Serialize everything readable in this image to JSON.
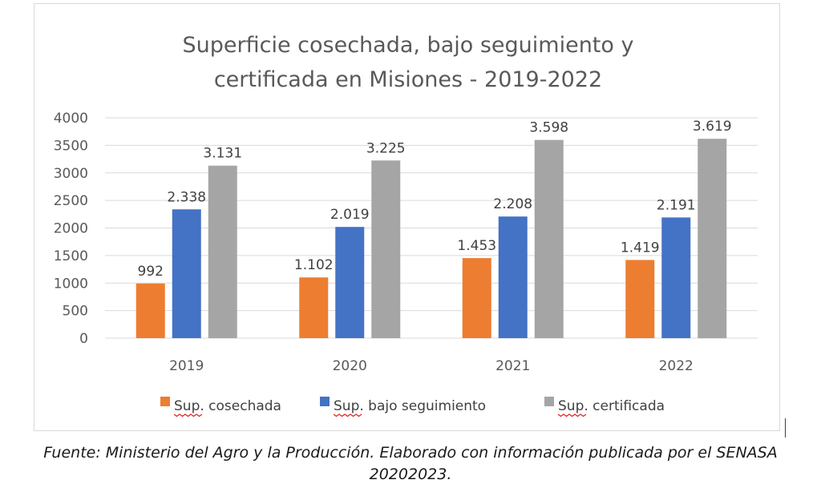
{
  "colors": {
    "cosechada": "#ed7d31",
    "seguimiento": "#4472c4",
    "certificada": "#a5a5a5",
    "grid": "#d9d9d9",
    "text": "#595959"
  },
  "chart_data": {
    "type": "bar",
    "title": [
      "Superficie cosechada, bajo seguimiento  y",
      "certificada en Misiones - 2019-2022"
    ],
    "categories": [
      "2019",
      "2020",
      "2021",
      "2022"
    ],
    "series": [
      {
        "name": "Sup. cosechada",
        "values": [
          992,
          1102,
          1453,
          1419
        ],
        "labels": [
          "992",
          "1.102",
          "1.453",
          "1.419"
        ],
        "color": "#ed7d31"
      },
      {
        "name": "Sup. bajo seguimiento",
        "values": [
          2338,
          2019,
          2208,
          2191
        ],
        "labels": [
          "2.338",
          "2.019",
          "2.208",
          "2.191"
        ],
        "color": "#4472c4"
      },
      {
        "name": "Sup. certificada",
        "values": [
          3131,
          3225,
          3598,
          3619
        ],
        "labels": [
          "3.131",
          "3.225",
          "3.598",
          "3.619"
        ],
        "color": "#a5a5a5"
      }
    ],
    "ylim": [
      0,
      4000
    ],
    "yticks": [
      "0",
      "500",
      "1000",
      "1500",
      "2000",
      "2500",
      "3000",
      "3500",
      "4000"
    ],
    "ytick_values": [
      0,
      500,
      1000,
      1500,
      2000,
      2500,
      3000,
      3500,
      4000
    ],
    "xlabel": "",
    "ylabel": "",
    "grid": true,
    "legend": "bottom"
  },
  "source_note": {
    "line1": "Fuente: Ministerio del Agro y la Producción. Elaborado con información publicada por el SENASA",
    "line2": "20202023."
  }
}
